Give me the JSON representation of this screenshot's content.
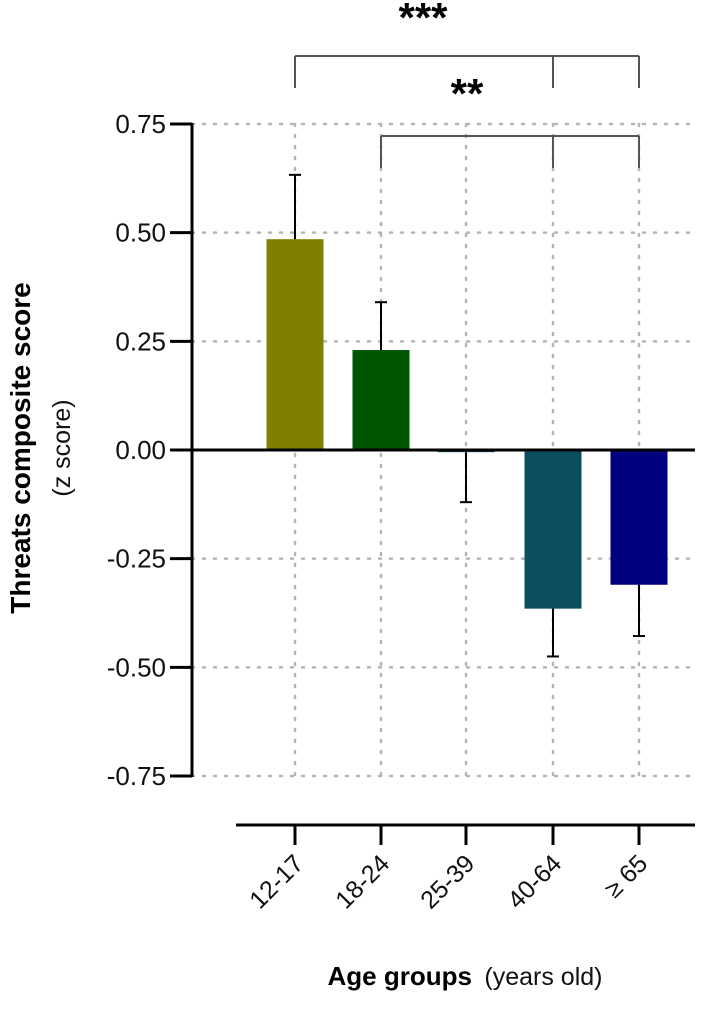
{
  "chart_data": {
    "type": "bar",
    "categories": [
      "12-17",
      "18-24",
      "25-39",
      "40-64",
      "≥ 65"
    ],
    "values": [
      0.485,
      0.23,
      -0.005,
      -0.365,
      -0.31
    ],
    "errors": [
      0.148,
      0.11,
      0.115,
      0.11,
      0.118
    ],
    "colors": [
      "#808000",
      "#005500",
      "#0a4d5c",
      "#0b4f5f",
      "#000080"
    ],
    "ylabel": "Threats composite score",
    "ylabel_sub": "(z score)",
    "xlabel": "Age groups",
    "xlabel_sub": "(years old)",
    "ylim": [
      -0.75,
      0.75
    ],
    "yticks": [
      "0.75",
      "0.50",
      "0.25",
      "0.00",
      "-0.25",
      "-0.50",
      "-0.75"
    ],
    "grid": true,
    "significance": [
      {
        "label": "***",
        "from": "12-17",
        "to": [
          "40-64",
          "≥ 65"
        ]
      },
      {
        "label": "**",
        "from": "18-24",
        "to": [
          "40-64",
          "≥ 65"
        ]
      }
    ]
  }
}
